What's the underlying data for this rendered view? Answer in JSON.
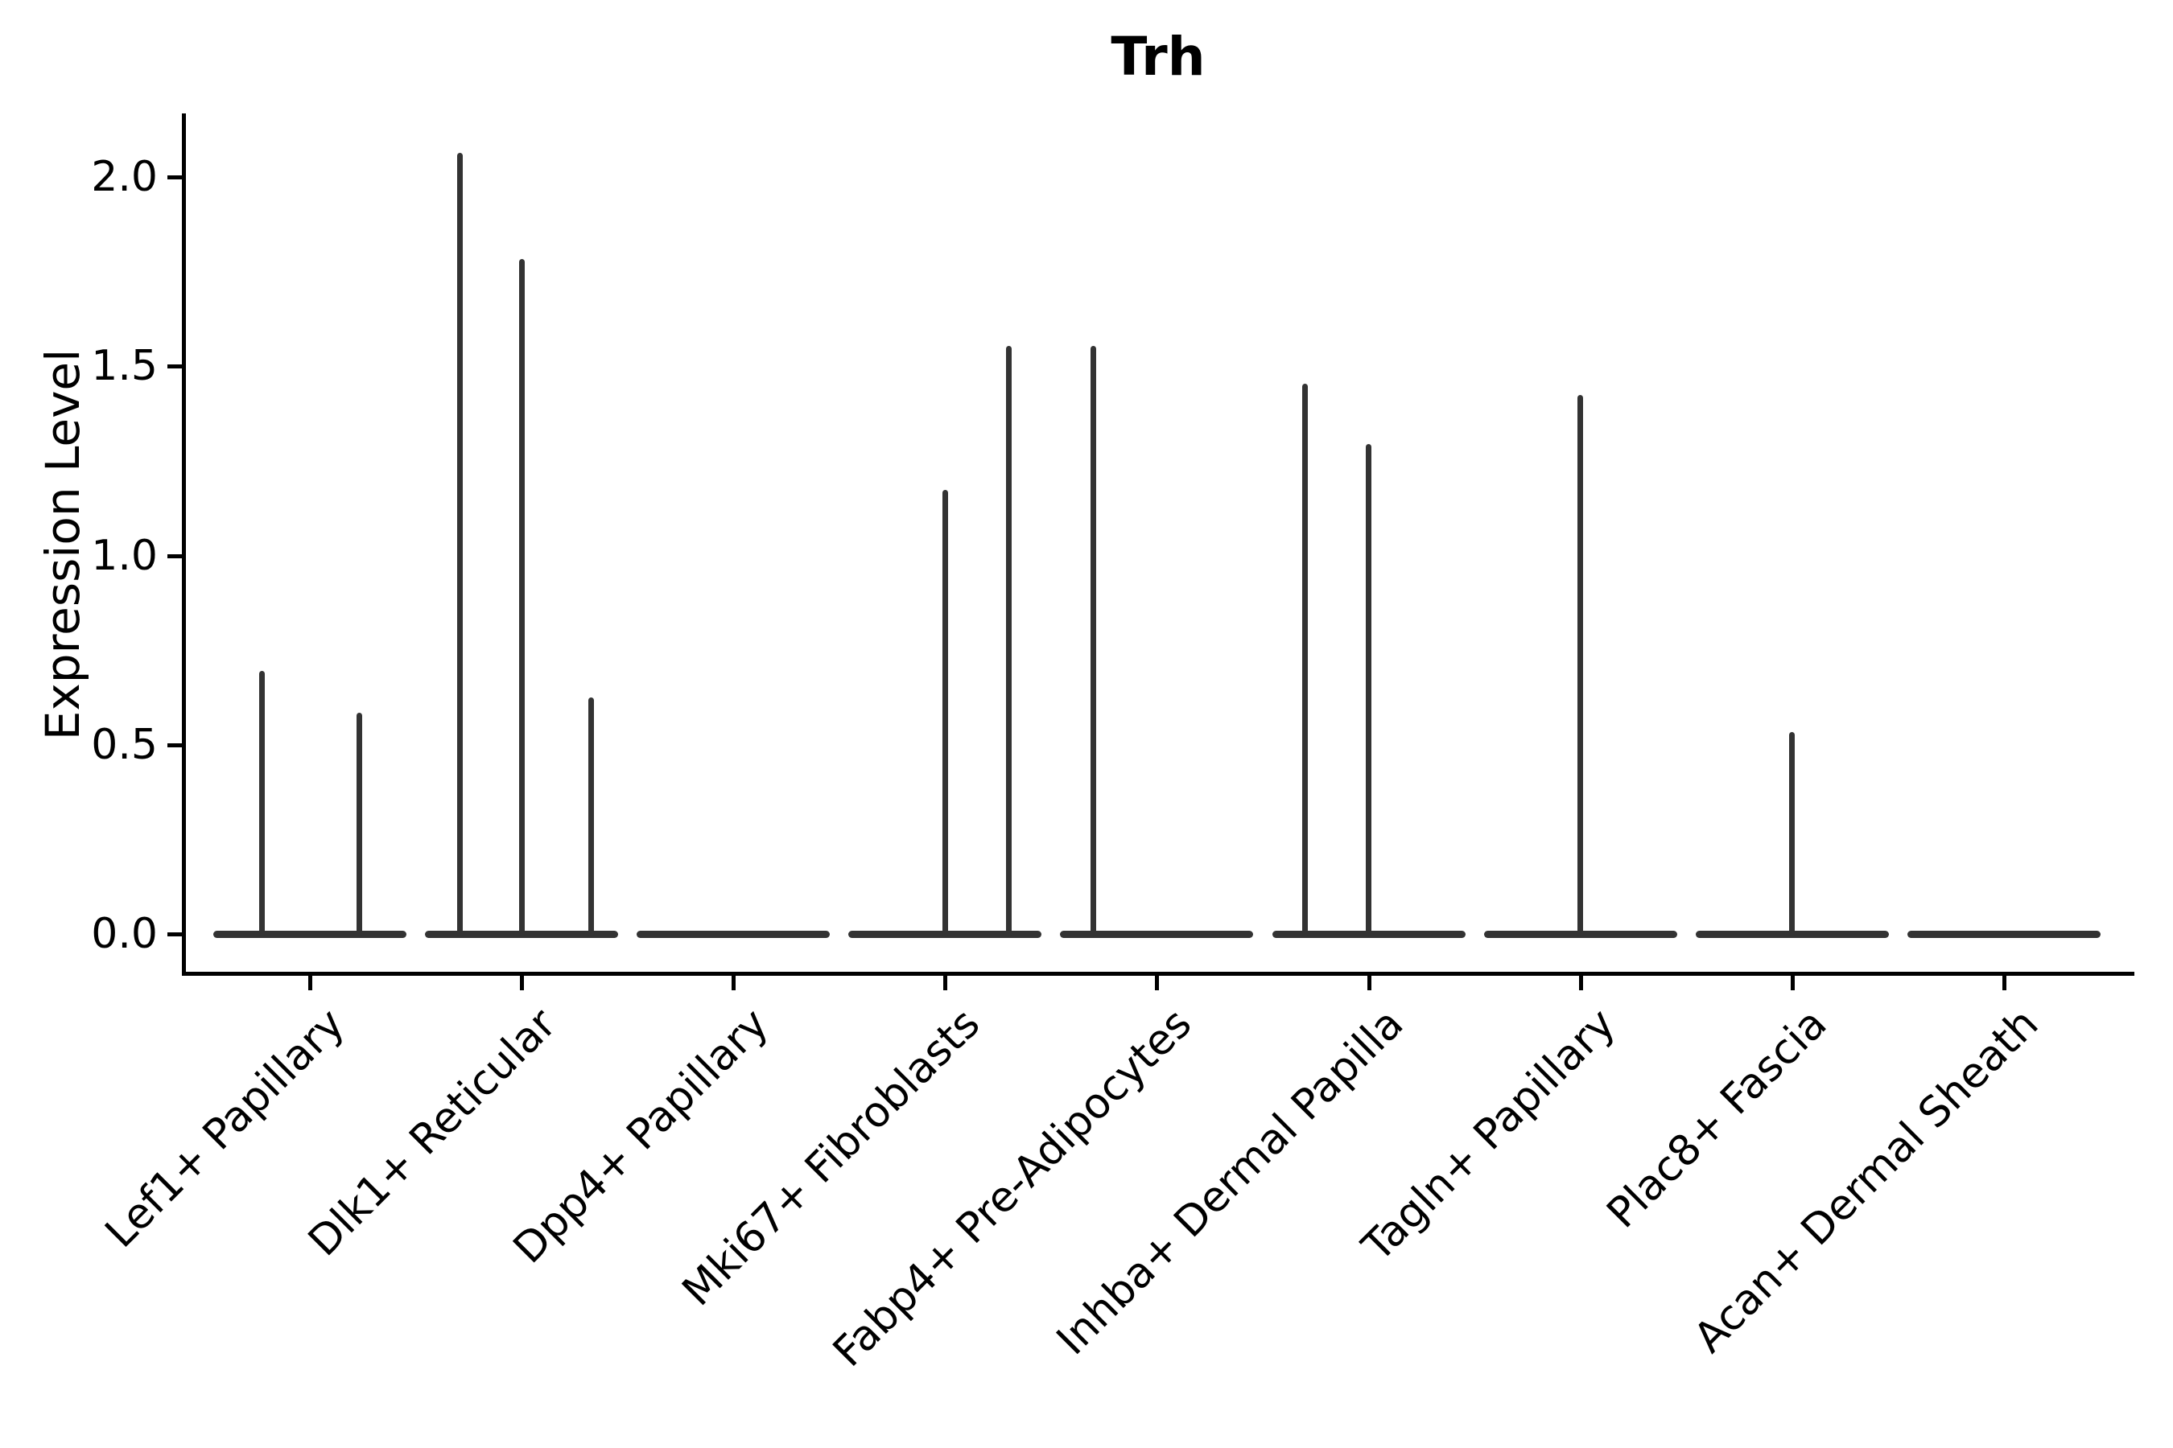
{
  "chart_data": {
    "type": "violin",
    "title": "Trh",
    "xlabel": "",
    "ylabel": "Expression Level",
    "ylim_drawn": [
      -0.1,
      2.17
    ],
    "yticks": [
      0.0,
      0.5,
      1.0,
      1.5,
      2.0
    ],
    "ytick_labels": [
      "0.0",
      "0.5",
      "1.0",
      "1.5",
      "2.0"
    ],
    "x_tick_rotation": 45,
    "grid": "off",
    "legend": "none",
    "categories": [
      "Lef1+ Papillary",
      "Dlk1+ Reticular",
      "Dpp4+ Papillary",
      "Mki67+ Fibroblasts",
      "Fabp4+ Pre-Adipocytes",
      "Inhba+ Dermal Papilla",
      "Tagln+ Papillary",
      "Plac8+ Fascia",
      "Acan+ Dermal Sheath"
    ],
    "series": [
      {
        "name": "Lef1+ Papillary",
        "zero_line": true,
        "spikes": [
          {
            "value": 0.69,
            "pos": -0.5
          },
          {
            "value": 0.58,
            "pos": 0.51
          }
        ]
      },
      {
        "name": "Dlk1+ Reticular",
        "zero_line": true,
        "spikes": [
          {
            "value": 2.06,
            "pos": -0.64
          },
          {
            "value": 1.78,
            "pos": 0.0
          },
          {
            "value": 0.62,
            "pos": 0.72
          }
        ]
      },
      {
        "name": "Dpp4+ Papillary",
        "zero_line": true,
        "spikes": []
      },
      {
        "name": "Mki67+ Fibroblasts",
        "zero_line": true,
        "spikes": [
          {
            "value": 1.17,
            "pos": 0.0
          },
          {
            "value": 1.55,
            "pos": 0.66
          }
        ]
      },
      {
        "name": "Fabp4+ Pre-Adipocytes",
        "zero_line": true,
        "spikes": [
          {
            "value": 1.55,
            "pos": -0.66
          }
        ]
      },
      {
        "name": "Inhba+ Dermal Papilla",
        "zero_line": true,
        "spikes": [
          {
            "value": 1.45,
            "pos": -0.66
          },
          {
            "value": 1.29,
            "pos": 0.0
          }
        ]
      },
      {
        "name": "Tagln+ Papillary",
        "zero_line": true,
        "spikes": [
          {
            "value": 1.42,
            "pos": 0.0
          }
        ]
      },
      {
        "name": "Plac8+ Fascia",
        "zero_line": true,
        "spikes": [
          {
            "value": 0.53,
            "pos": 0.0
          }
        ]
      },
      {
        "name": "Acan+ Dermal Sheath",
        "zero_line": true,
        "spikes": []
      }
    ],
    "colors": {
      "violin_line": "#333333",
      "axis": "#000000",
      "background": "#ffffff"
    }
  }
}
